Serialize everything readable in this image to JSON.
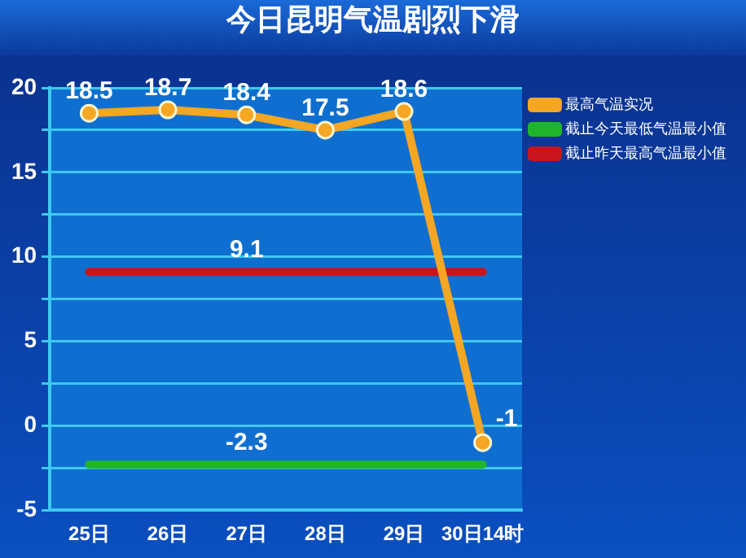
{
  "chart_data": {
    "type": "line",
    "title": "今日昆明气温剧烈下滑",
    "categories": [
      "25日",
      "26日",
      "27日",
      "28日",
      "29日",
      "30日14时"
    ],
    "series": [
      {
        "name": "最高气温实况",
        "color": "#f5a623",
        "values": [
          18.5,
          18.7,
          18.4,
          17.5,
          18.6,
          -1
        ],
        "marker": "circle",
        "value_labels": [
          "18.5",
          "18.7",
          "18.4",
          "17.5",
          "18.6",
          "-1"
        ]
      },
      {
        "name": "截止今天最低气温最小值",
        "color": "#1fb52a",
        "values": [
          -2.3,
          -2.3,
          -2.3,
          -2.3,
          -2.3,
          -2.3
        ],
        "marker": "none",
        "value_labels": [
          null,
          null,
          "-2.3",
          null,
          null,
          null
        ]
      },
      {
        "name": "截止昨天最高气温最小值",
        "color": "#c8141e",
        "values": [
          9.1,
          9.1,
          9.1,
          9.1,
          9.1,
          9.1
        ],
        "marker": "none",
        "value_labels": [
          null,
          null,
          "9.1",
          null,
          null,
          null
        ]
      }
    ],
    "ylim": [
      -5,
      20
    ],
    "yticks": [
      -5,
      {
        "value": -2.5,
        "label": null
      },
      0,
      {
        "value": 2.5,
        "label": null
      },
      5,
      {
        "value": 7.5,
        "label": null
      },
      10,
      {
        "value": 12.5,
        "label": null
      },
      15,
      {
        "value": 17.5,
        "label": null
      },
      20
    ],
    "grid": "y",
    "legend": "right",
    "line_style": "solid"
  }
}
